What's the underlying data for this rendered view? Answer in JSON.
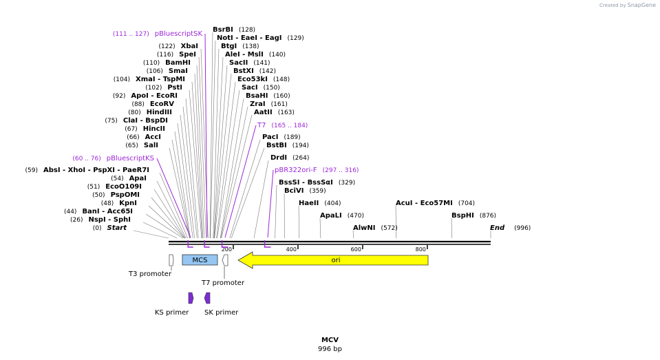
{
  "credit": {
    "prefix": "Created by",
    "brand": "SnapGene"
  },
  "map": {
    "name": "MCV",
    "length_label": "996 bp",
    "length_bp": 996
  },
  "colors": {
    "backbone": "#000000",
    "feature": "#9b26d6",
    "ori": "#ffff00",
    "mcs": "#95c6f2",
    "primer": "#7d2cd6"
  },
  "enzymes": [
    {
      "label": "BsrBI",
      "pos": "(128)"
    },
    {
      "label": "NotI   - EaeI   - EagI",
      "pos": "(129)"
    },
    {
      "label": "BtgI",
      "pos": "(138)"
    },
    {
      "label": "AleI   - MslI",
      "pos": "(140)"
    },
    {
      "label": "SacII",
      "pos": "(141)"
    },
    {
      "label": "BstXI",
      "pos": "(142)"
    },
    {
      "label": "Eco53kI",
      "pos": "(148)"
    },
    {
      "label": "SacI",
      "pos": "(150)"
    },
    {
      "label": "BsaHI",
      "pos": "(160)"
    },
    {
      "label": "ZraI",
      "pos": "(161)"
    },
    {
      "label": "AatII",
      "pos": "(163)"
    },
    {
      "label": "PacI",
      "pos": "(189)"
    },
    {
      "label": "BstBI",
      "pos": "(194)"
    },
    {
      "label": "DrdI",
      "pos": "(264)"
    },
    {
      "label": "BssSI   - BssSαI",
      "pos": "(329)"
    },
    {
      "label": "BciVI",
      "pos": "(359)"
    },
    {
      "label": "HaeII",
      "pos": "(404)"
    },
    {
      "label": "ApaLI",
      "pos": "(470)"
    },
    {
      "label": "AlwNI",
      "pos": "(572)"
    },
    {
      "label": "AcuI   - Eco57MI",
      "pos": "(704)"
    },
    {
      "label": "BspHI",
      "pos": "(876)"
    },
    {
      "label": "XbaI",
      "pos": "(122)"
    },
    {
      "label": "SpeI",
      "pos": "(116)"
    },
    {
      "label": "BamHI",
      "pos": "(110)"
    },
    {
      "label": "SmaI",
      "pos": "(106)"
    },
    {
      "label": "XmaI   - TspMI",
      "pos": "(104)"
    },
    {
      "label": "PstI",
      "pos": "(102)"
    },
    {
      "label": "ApoI   - EcoRI",
      "pos": "(92)"
    },
    {
      "label": "EcoRV",
      "pos": "(88)"
    },
    {
      "label": "HindIII",
      "pos": "(80)"
    },
    {
      "label": "ClaI   - BspDI",
      "pos": "(75)"
    },
    {
      "label": "HincII",
      "pos": "(67)"
    },
    {
      "label": "AccI",
      "pos": "(66)"
    },
    {
      "label": "SalI",
      "pos": "(65)"
    },
    {
      "label": "AbsI   - XhoI   - PspXI   - PaeR7I",
      "pos": "(59)"
    },
    {
      "label": "ApaI",
      "pos": "(54)"
    },
    {
      "label": "EcoO109I",
      "pos": "(51)"
    },
    {
      "label": "PspOMI",
      "pos": "(50)"
    },
    {
      "label": "KpnI",
      "pos": "(48)"
    },
    {
      "label": "BanI   - Acc65I",
      "pos": "(44)"
    },
    {
      "label": "NspI   - SphI",
      "pos": "(26)"
    }
  ],
  "ends": [
    {
      "label": "Start",
      "pos": "(0)"
    },
    {
      "label": "End",
      "pos": "(996)"
    }
  ],
  "features": [
    {
      "label": "pBluescriptSK",
      "range": "(111 .. 127)"
    },
    {
      "label": "T7",
      "range": "(165 .. 184)"
    },
    {
      "label": "pBluescriptKS",
      "range": "(60 .. 76)"
    },
    {
      "label": "pBR322ori-F",
      "range": "(297 .. 316)"
    }
  ],
  "ticks": [
    "200",
    "400",
    "600",
    "800"
  ],
  "annotations": [
    {
      "label": "MCS"
    },
    {
      "label": "ori"
    },
    {
      "label": "T3 promoter"
    },
    {
      "label": "T7 promoter"
    },
    {
      "label": "KS primer"
    },
    {
      "label": "SK primer"
    }
  ]
}
